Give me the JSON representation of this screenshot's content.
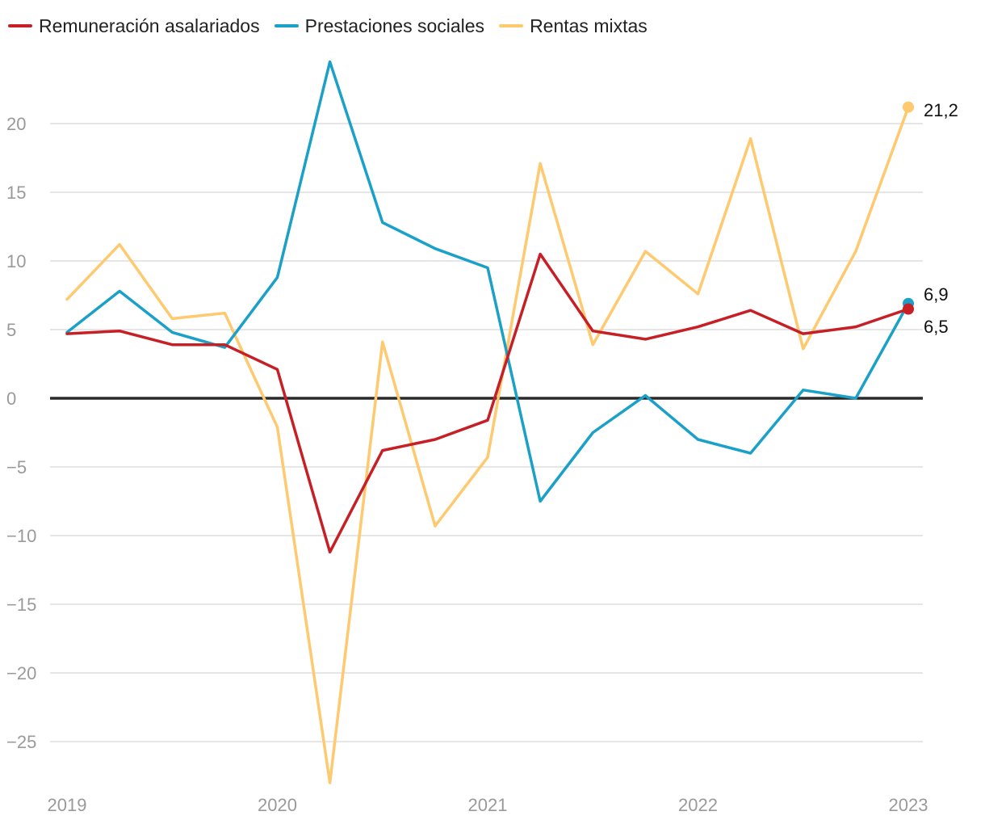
{
  "chart_data": {
    "type": "line",
    "title": "",
    "xlabel": "",
    "ylabel": "",
    "x": [
      "2019 T1",
      "2019 T2",
      "2019 T3",
      "2019 T4",
      "2020 T1",
      "2020 T2",
      "2020 T3",
      "2020 T4",
      "2021 T1",
      "2021 T2",
      "2021 T3",
      "2021 T4",
      "2022 T1",
      "2022 T2",
      "2022 T3",
      "2022 T4",
      "2023 T1"
    ],
    "x_ticks": [
      "2019",
      "2020",
      "2021",
      "2022",
      "2023"
    ],
    "y_ticks": [
      "20",
      "15",
      "10",
      "5",
      "0",
      "−5",
      "−10",
      "−15",
      "−20",
      "−25"
    ],
    "y_tick_values": [
      20,
      15,
      10,
      5,
      0,
      -5,
      -10,
      -15,
      -20,
      -25
    ],
    "ylim": [
      -28,
      24.5
    ],
    "grid": true,
    "legend_position": "top-left",
    "series": [
      {
        "name": "Remuneración asalariados",
        "color": "#c62026",
        "values": [
          4.7,
          4.9,
          3.9,
          3.9,
          2.1,
          -11.2,
          -3.8,
          -3.0,
          -1.6,
          10.5,
          4.9,
          4.3,
          5.2,
          6.4,
          4.7,
          5.2,
          6.5
        ],
        "end_label": "6,5"
      },
      {
        "name": "Prestaciones sociales",
        "color": "#1ba0c8",
        "values": [
          4.8,
          7.8,
          4.8,
          3.7,
          8.8,
          24.5,
          12.8,
          10.9,
          9.5,
          -7.5,
          -2.5,
          0.2,
          -3.0,
          -4.0,
          0.6,
          0.0,
          6.9
        ],
        "end_label": "6,9"
      },
      {
        "name": "Rentas mixtas",
        "color": "#fec96f",
        "values": [
          7.2,
          11.2,
          5.8,
          6.2,
          -2.1,
          -28.0,
          4.1,
          -9.3,
          -4.3,
          17.1,
          3.9,
          10.7,
          7.6,
          18.9,
          3.6,
          10.7,
          21.2
        ],
        "end_label": "21,2"
      }
    ]
  }
}
